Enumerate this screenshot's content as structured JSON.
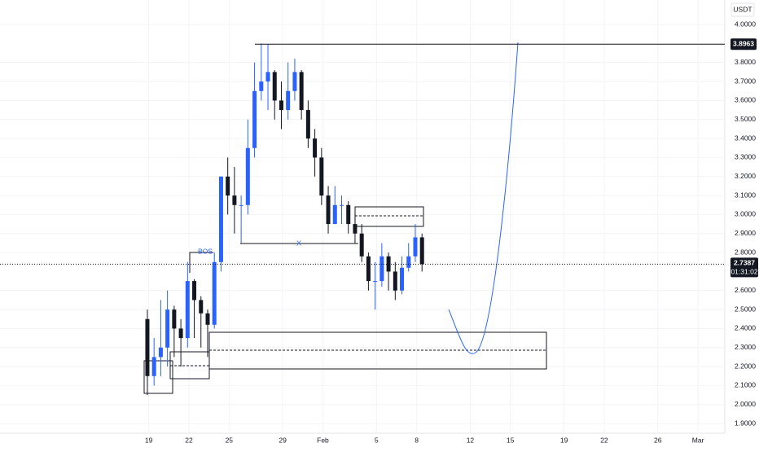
{
  "chart_data": {
    "type": "candlestick",
    "currency": "USDT",
    "x": [
      18.9,
      19.4,
      19.9,
      20.4,
      20.9,
      21.4,
      21.9,
      22.4,
      22.9,
      23.4,
      23.9,
      24.4,
      24.9,
      25.4,
      25.9,
      26.4,
      26.9,
      27.4,
      27.9,
      28.4,
      28.9,
      29.4,
      29.9,
      30.4,
      30.9,
      31.4,
      31.9,
      32.4,
      32.9,
      33.4,
      33.9,
      34.4,
      34.9,
      35.4,
      35.9,
      36.4,
      36.9,
      37.4,
      37.9,
      38.4,
      38.9,
      39.4
    ],
    "open": [
      2.45,
      2.15,
      2.25,
      2.3,
      2.5,
      2.4,
      2.35,
      2.65,
      2.55,
      2.48,
      2.42,
      2.75,
      3.2,
      3.1,
      3.05,
      3.05,
      3.35,
      3.65,
      3.7,
      3.75,
      3.6,
      3.55,
      3.65,
      3.75,
      3.55,
      3.4,
      3.3,
      3.1,
      2.95,
      3.05,
      3.05,
      2.95,
      2.9,
      2.78,
      2.65,
      2.65,
      2.78,
      2.7,
      2.6,
      2.72,
      2.78,
      2.88
    ],
    "high": [
      2.5,
      2.35,
      2.55,
      2.6,
      2.52,
      2.45,
      2.75,
      2.66,
      2.57,
      2.5,
      2.8,
      3.2,
      3.3,
      3.25,
      3.1,
      3.5,
      3.8,
      3.9,
      3.8963,
      3.76,
      3.7,
      3.8,
      3.82,
      3.76,
      3.6,
      3.45,
      3.35,
      3.15,
      3.15,
      3.1,
      3.07,
      3.0,
      2.95,
      2.8,
      2.75,
      2.85,
      2.8,
      2.75,
      2.78,
      2.85,
      2.95,
      2.9
    ],
    "low": [
      2.05,
      2.1,
      2.15,
      2.2,
      2.25,
      2.2,
      2.3,
      2.35,
      2.3,
      2.25,
      2.4,
      2.7,
      3.0,
      2.9,
      2.85,
      3.0,
      3.3,
      3.6,
      3.55,
      3.5,
      3.45,
      3.5,
      3.6,
      3.5,
      3.35,
      3.2,
      3.05,
      2.9,
      2.95,
      2.95,
      2.9,
      2.85,
      2.75,
      2.6,
      2.5,
      2.62,
      2.6,
      2.55,
      2.58,
      2.7,
      2.75,
      2.7
    ],
    "close": [
      2.15,
      2.25,
      2.3,
      2.5,
      2.4,
      2.35,
      2.65,
      2.55,
      2.48,
      2.42,
      2.75,
      3.2,
      3.1,
      3.05,
      3.05,
      3.35,
      3.65,
      3.7,
      3.75,
      3.6,
      3.55,
      3.65,
      3.75,
      3.55,
      3.4,
      3.3,
      3.1,
      2.95,
      3.05,
      3.05,
      2.95,
      2.9,
      2.78,
      2.65,
      2.65,
      2.78,
      2.7,
      2.6,
      2.72,
      2.78,
      2.88,
      2.7387
    ],
    "up_color": "#2962ff",
    "down_color": "#131722",
    "xlim": [
      7.9,
      62
    ],
    "ylim": [
      1.849,
      4.129
    ],
    "xticks": [
      {
        "value": 19,
        "label": "19"
      },
      {
        "value": 22,
        "label": "22"
      },
      {
        "value": 25,
        "label": "25"
      },
      {
        "value": 29,
        "label": "29"
      },
      {
        "value": 32,
        "label": "Feb"
      },
      {
        "value": 36,
        "label": "5"
      },
      {
        "value": 39,
        "label": "8"
      },
      {
        "value": 43,
        "label": "12"
      },
      {
        "value": 46,
        "label": "15"
      },
      {
        "value": 50,
        "label": "19"
      },
      {
        "value": 53,
        "label": "22"
      },
      {
        "value": 57,
        "label": "26"
      },
      {
        "value": 60,
        "label": "Mar"
      }
    ],
    "yticks": [
      {
        "value": 1.9,
        "label": "1.9000"
      },
      {
        "value": 2.0,
        "label": "2.0000"
      },
      {
        "value": 2.1,
        "label": "2.1000"
      },
      {
        "value": 2.2,
        "label": "2.2000"
      },
      {
        "value": 2.3,
        "label": "2.3000"
      },
      {
        "value": 2.4,
        "label": "2.4000"
      },
      {
        "value": 2.5,
        "label": "2.5000"
      },
      {
        "value": 2.6,
        "label": "2.6000"
      },
      {
        "value": 2.8,
        "label": "2.8000"
      },
      {
        "value": 2.9,
        "label": "2.9000"
      },
      {
        "value": 3.0,
        "label": "3.0000"
      },
      {
        "value": 3.1,
        "label": "3.1000"
      },
      {
        "value": 3.2,
        "label": "3.2000"
      },
      {
        "value": 3.3,
        "label": "3.3000"
      },
      {
        "value": 3.4,
        "label": "3.4000"
      },
      {
        "value": 3.5,
        "label": "3.5000"
      },
      {
        "value": 3.6,
        "label": "3.6000"
      },
      {
        "value": 3.7,
        "label": "3.7000"
      },
      {
        "value": 3.8,
        "label": "3.8000"
      },
      {
        "value": 4.0,
        "label": "4.0000"
      }
    ],
    "high_level": 3.8963,
    "last_price": 2.7387,
    "countdown": "01:31:02",
    "annotations": [
      "BOS",
      "X"
    ]
  }
}
